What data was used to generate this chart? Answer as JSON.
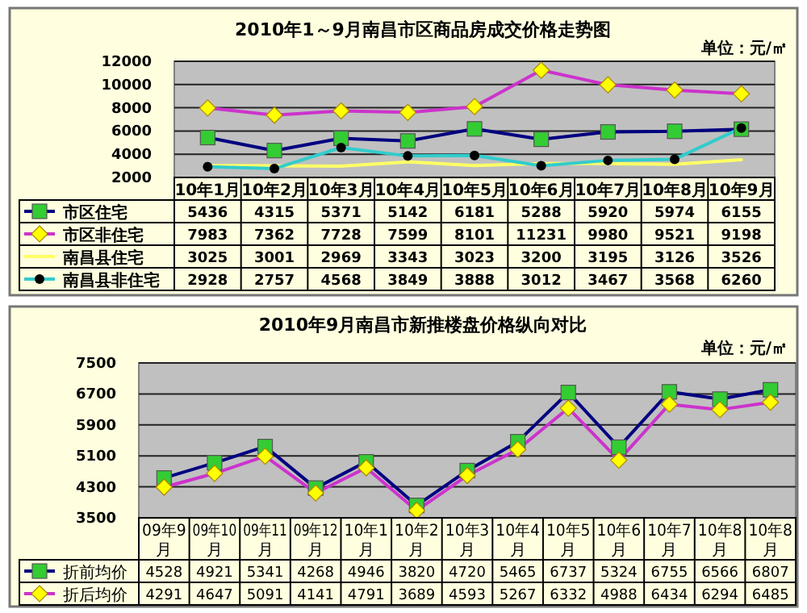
{
  "chart_data": [
    {
      "type": "line",
      "title": "2010年1～9月南昌市区商品房成交价格走势图",
      "annotations": [
        "单位：元/㎡"
      ],
      "categories": [
        "10年1月",
        "10年2月",
        "10年3月",
        "10年4月",
        "10年5月",
        "10年6月",
        "10年7月",
        "10年8月",
        "10年9月"
      ],
      "series": [
        {
          "name": "市区住宅",
          "color": "#000080",
          "marker": "square",
          "colors": [
            "#33cc33",
            "#33cc33",
            "#33cc33",
            "#33cc33",
            "#33cc33",
            "#33cc33",
            "#33cc33",
            "#33cc33",
            "#33cc33"
          ],
          "values": [
            5436,
            4315,
            5371,
            5142,
            6181,
            5288,
            5920,
            5974,
            6155
          ]
        },
        {
          "name": "市区非住宅",
          "color": "#cc33cc",
          "marker": "diamond",
          "colors": [
            "#ffff00",
            "#ffff00",
            "#ffff00",
            "#ffff00",
            "#ffff00",
            "#ffff00",
            "#ffff00",
            "#ffff00",
            "#ffff00"
          ],
          "values": [
            7983,
            7362,
            7728,
            7599,
            8101,
            11231,
            9980,
            9521,
            9198
          ]
        },
        {
          "name": "南昌县住宅",
          "color": "#ffff66",
          "marker": "none",
          "values": [
            3025,
            3001,
            2969,
            3343,
            3023,
            3200,
            3195,
            3126,
            3526
          ]
        },
        {
          "name": "南昌县非住宅",
          "color": "#33cccc",
          "marker": "circle",
          "colors": [
            "#000000",
            "#000000",
            "#000000",
            "#000000",
            "#000000",
            "#000000",
            "#000000",
            "#000000",
            "#000000"
          ],
          "values": [
            2928,
            2757,
            4568,
            3849,
            3888,
            3012,
            3467,
            3568,
            6260
          ]
        }
      ],
      "ylim": [
        2000,
        12000
      ],
      "yticks": [
        2000,
        4000,
        6000,
        8000,
        10000,
        12000
      ],
      "grid": "y",
      "legend": "bottom",
      "data_labels": true
    },
    {
      "type": "line",
      "title": "2010年9月南昌市新推楼盘价格纵向对比",
      "annotations": [
        "单位：元/㎡"
      ],
      "categories": [
        "09年9月",
        "09年10月",
        "09年11月",
        "09年12月",
        "10年1月",
        "10年2月",
        "10年3月",
        "10年4月",
        "10年5月",
        "10年6月",
        "10年7月",
        "10年8月",
        "10年8月"
      ],
      "series": [
        {
          "name": "折前均价",
          "color": "#000080",
          "marker": "square",
          "colors": [
            "#33cc33",
            "#33cc33",
            "#33cc33",
            "#33cc33",
            "#33cc33",
            "#33cc33",
            "#33cc33",
            "#33cc33",
            "#33cc33",
            "#33cc33",
            "#33cc33",
            "#33cc33",
            "#33cc33"
          ],
          "values": [
            4528,
            4921,
            5341,
            4268,
            4946,
            3820,
            4720,
            5465,
            6737,
            5324,
            6755,
            6566,
            6807
          ]
        },
        {
          "name": "折后均价",
          "color": "#cc33cc",
          "marker": "diamond",
          "colors": [
            "#ffff00",
            "#ffff00",
            "#ffff00",
            "#ffff00",
            "#ffff00",
            "#ffff00",
            "#ffff00",
            "#ffff00",
            "#ffff00",
            "#ffff00",
            "#ffff00",
            "#ffff00",
            "#ffff00"
          ],
          "values": [
            4291,
            4647,
            5091,
            4141,
            4791,
            3689,
            4593,
            5267,
            6332,
            4988,
            6434,
            6294,
            6485
          ]
        }
      ],
      "ylim": [
        3500,
        7500
      ],
      "yticks": [
        3500,
        4300,
        5100,
        5900,
        6700,
        7500
      ],
      "grid": "y",
      "legend": "bottom",
      "data_labels": true
    }
  ]
}
